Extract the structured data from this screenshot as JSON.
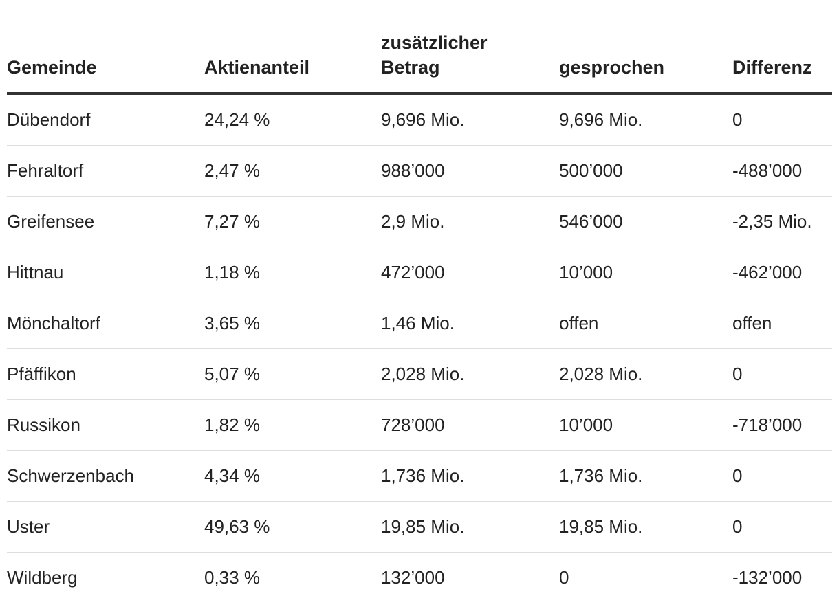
{
  "table": {
    "headers": [
      {
        "line1": "",
        "line2": "Gemeinde"
      },
      {
        "line1": "",
        "line2": "Aktienanteil"
      },
      {
        "line1": "zusätzlicher",
        "line2": "Betrag"
      },
      {
        "line1": "",
        "line2": "gesprochen"
      },
      {
        "line1": "",
        "line2": "Differenz"
      }
    ],
    "rows": [
      [
        "Dübendorf",
        "24,24 %",
        "9,696 Mio.",
        "9,696 Mio.",
        "0"
      ],
      [
        "Fehraltorf",
        "2,47 %",
        "988’000",
        "500’000",
        "-488’000"
      ],
      [
        "Greifensee",
        "7,27 %",
        "2,9 Mio.",
        "546’000",
        "-2,35 Mio."
      ],
      [
        "Hittnau",
        "1,18 %",
        "472’000",
        "10’000",
        "-462’000"
      ],
      [
        "Mönchaltorf",
        "3,65 %",
        "1,46 Mio.",
        "offen",
        "offen"
      ],
      [
        "Pfäffikon",
        "5,07 %",
        "2,028 Mio.",
        "2,028 Mio.",
        "0"
      ],
      [
        "Russikon",
        "1,82 %",
        "728’000",
        "10’000",
        "-718’000"
      ],
      [
        "Schwerzenbach",
        "4,34 %",
        "1,736 Mio.",
        "1,736 Mio.",
        "0"
      ],
      [
        "Uster",
        "49,63 %",
        "19,85 Mio.",
        "19,85 Mio.",
        "0"
      ],
      [
        "Wildberg",
        "0,33 %",
        "132’000",
        "0",
        "-132’000"
      ]
    ]
  }
}
